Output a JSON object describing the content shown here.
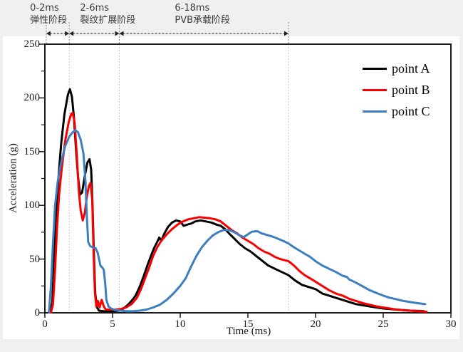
{
  "page": {
    "background_color": "#f0f0f1",
    "figure_background_color": "#ffffff"
  },
  "chart_data": {
    "type": "line",
    "title": "",
    "xlabel": "Time (ms)",
    "ylabel": "Acceleration (g)",
    "xlim": [
      0,
      30
    ],
    "ylim": [
      0,
      250
    ],
    "x_ticks": [
      0,
      5,
      10,
      15,
      20,
      25,
      30
    ],
    "y_ticks": [
      0,
      50,
      100,
      150,
      200,
      250
    ],
    "y_minor_ticks": [
      25,
      75,
      125,
      175,
      225
    ],
    "grid": false,
    "frame_color": "#1a1a1a",
    "legend_position": "upper right",
    "legend": {
      "items": [
        {
          "label": "point A",
          "color": "#000000"
        },
        {
          "label": "point B",
          "color": "#f80000"
        },
        {
          "label": "point C",
          "color": "#3c7ebf"
        }
      ]
    },
    "stages": [
      {
        "range_label": "0-2ms",
        "stage_label": "弹性阶段",
        "start_ms": 0.1,
        "end_ms": 1.8,
        "label_anchor_ms": -1.1
      },
      {
        "range_label": "2-6ms",
        "stage_label": "裂纹扩展阶段",
        "start_ms": 1.8,
        "end_ms": 5.5,
        "label_anchor_ms": 2.6
      },
      {
        "range_label": "6-18ms",
        "stage_label": "PVB承载阶段",
        "start_ms": 5.5,
        "end_ms": 18.0,
        "label_anchor_ms": 9.6
      }
    ],
    "series": [
      {
        "name": "point A",
        "color": "#000000",
        "line_width": 3,
        "points": [
          [
            0.25,
            0
          ],
          [
            0.4,
            1
          ],
          [
            0.55,
            10
          ],
          [
            0.7,
            55
          ],
          [
            0.85,
            95
          ],
          [
            1.0,
            125
          ],
          [
            1.2,
            157
          ],
          [
            1.45,
            185
          ],
          [
            1.7,
            203
          ],
          [
            1.85,
            208
          ],
          [
            2.0,
            201
          ],
          [
            2.15,
            182
          ],
          [
            2.3,
            152
          ],
          [
            2.45,
            127
          ],
          [
            2.6,
            110
          ],
          [
            2.75,
            112
          ],
          [
            2.95,
            127
          ],
          [
            3.15,
            140
          ],
          [
            3.3,
            143
          ],
          [
            3.42,
            133
          ],
          [
            3.52,
            100
          ],
          [
            3.62,
            55
          ],
          [
            3.72,
            18
          ],
          [
            3.85,
            5
          ],
          [
            4.0,
            2
          ],
          [
            4.3,
            1.5
          ],
          [
            4.7,
            1.5
          ],
          [
            5.1,
            1.5
          ],
          [
            5.5,
            2
          ],
          [
            5.8,
            4
          ],
          [
            6.1,
            7
          ],
          [
            6.4,
            11
          ],
          [
            6.7,
            16
          ],
          [
            7.0,
            24
          ],
          [
            7.3,
            34
          ],
          [
            7.6,
            45
          ],
          [
            7.9,
            55
          ],
          [
            8.1,
            61
          ],
          [
            8.3,
            66
          ],
          [
            8.45,
            70
          ],
          [
            8.6,
            67
          ],
          [
            8.8,
            73
          ],
          [
            9.1,
            80
          ],
          [
            9.4,
            84
          ],
          [
            9.7,
            86
          ],
          [
            10.0,
            85
          ],
          [
            10.25,
            81
          ],
          [
            10.5,
            82
          ],
          [
            10.8,
            83
          ],
          [
            11.1,
            85
          ],
          [
            11.5,
            86
          ],
          [
            11.9,
            85
          ],
          [
            12.3,
            84
          ],
          [
            12.7,
            82
          ],
          [
            13.0,
            81
          ],
          [
            13.3,
            78
          ],
          [
            13.6,
            74
          ],
          [
            14.0,
            69
          ],
          [
            14.4,
            64
          ],
          [
            14.8,
            60
          ],
          [
            15.2,
            57
          ],
          [
            15.6,
            53
          ],
          [
            16.0,
            49
          ],
          [
            16.5,
            44
          ],
          [
            17.0,
            41
          ],
          [
            17.5,
            38
          ],
          [
            18.0,
            35
          ],
          [
            18.5,
            30
          ],
          [
            19.0,
            26
          ],
          [
            19.5,
            24
          ],
          [
            20.0,
            22
          ],
          [
            20.5,
            18
          ],
          [
            21.0,
            16
          ],
          [
            21.5,
            14
          ],
          [
            22.0,
            12
          ],
          [
            22.5,
            10
          ],
          [
            23.0,
            8
          ],
          [
            23.5,
            7
          ],
          [
            24.0,
            6
          ],
          [
            24.5,
            5
          ],
          [
            25.0,
            4
          ],
          [
            25.5,
            3.5
          ],
          [
            26.0,
            3
          ],
          [
            26.5,
            2.5
          ],
          [
            27.0,
            2
          ],
          [
            27.5,
            1.8
          ],
          [
            28.0,
            1.5
          ]
        ]
      },
      {
        "name": "point B",
        "color": "#f80000",
        "line_width": 3,
        "points": [
          [
            0.45,
            0
          ],
          [
            0.6,
            8
          ],
          [
            0.75,
            40
          ],
          [
            0.9,
            80
          ],
          [
            1.05,
            110
          ],
          [
            1.25,
            135
          ],
          [
            1.5,
            160
          ],
          [
            1.75,
            177
          ],
          [
            1.95,
            185
          ],
          [
            2.05,
            186
          ],
          [
            2.2,
            177
          ],
          [
            2.35,
            148
          ],
          [
            2.5,
            115
          ],
          [
            2.65,
            95
          ],
          [
            2.8,
            86
          ],
          [
            2.95,
            93
          ],
          [
            3.1,
            108
          ],
          [
            3.25,
            118
          ],
          [
            3.38,
            121
          ],
          [
            3.5,
            105
          ],
          [
            3.6,
            55
          ],
          [
            3.7,
            18
          ],
          [
            3.8,
            6
          ],
          [
            3.92,
            11
          ],
          [
            4.05,
            5
          ],
          [
            4.2,
            12
          ],
          [
            4.35,
            6
          ],
          [
            4.5,
            3
          ],
          [
            4.8,
            3
          ],
          [
            5.2,
            3
          ],
          [
            5.6,
            3.5
          ],
          [
            6.0,
            5
          ],
          [
            6.4,
            8
          ],
          [
            6.8,
            14
          ],
          [
            7.1,
            22
          ],
          [
            7.4,
            32
          ],
          [
            7.7,
            42
          ],
          [
            8.0,
            53
          ],
          [
            8.3,
            61
          ],
          [
            8.6,
            67
          ],
          [
            9.0,
            73
          ],
          [
            9.4,
            78
          ],
          [
            9.8,
            82
          ],
          [
            10.2,
            85
          ],
          [
            10.6,
            87
          ],
          [
            11.0,
            88
          ],
          [
            11.4,
            89
          ],
          [
            11.8,
            88.5
          ],
          [
            12.2,
            88
          ],
          [
            12.6,
            87
          ],
          [
            13.0,
            85
          ],
          [
            13.4,
            81
          ],
          [
            13.8,
            77
          ],
          [
            14.2,
            74
          ],
          [
            14.6,
            70
          ],
          [
            15.0,
            67
          ],
          [
            15.4,
            64
          ],
          [
            15.8,
            60
          ],
          [
            16.2,
            57
          ],
          [
            16.6,
            55
          ],
          [
            17.0,
            52
          ],
          [
            17.4,
            50
          ],
          [
            18.0,
            48
          ],
          [
            18.4,
            44
          ],
          [
            18.8,
            39
          ],
          [
            19.2,
            35
          ],
          [
            19.6,
            32
          ],
          [
            20.0,
            29
          ],
          [
            20.5,
            25
          ],
          [
            21.0,
            21
          ],
          [
            21.5,
            18
          ],
          [
            22.0,
            16
          ],
          [
            22.5,
            13
          ],
          [
            23.0,
            11
          ],
          [
            23.5,
            9
          ],
          [
            24.0,
            7.5
          ],
          [
            24.5,
            6
          ],
          [
            25.0,
            5
          ],
          [
            25.5,
            4
          ],
          [
            26.0,
            3
          ],
          [
            26.5,
            2.5
          ],
          [
            27.0,
            2
          ],
          [
            27.6,
            1.5
          ],
          [
            28.2,
            1
          ]
        ]
      },
      {
        "name": "point C",
        "color": "#3c7ebf",
        "line_width": 3,
        "points": [
          [
            0.3,
            0
          ],
          [
            0.45,
            25
          ],
          [
            0.6,
            65
          ],
          [
            0.75,
            100
          ],
          [
            0.95,
            122
          ],
          [
            1.2,
            140
          ],
          [
            1.5,
            155
          ],
          [
            1.8,
            164
          ],
          [
            2.05,
            168
          ],
          [
            2.25,
            170
          ],
          [
            2.45,
            168
          ],
          [
            2.65,
            161
          ],
          [
            2.85,
            148
          ],
          [
            3.0,
            122
          ],
          [
            3.1,
            90
          ],
          [
            3.2,
            66
          ],
          [
            3.35,
            62
          ],
          [
            3.55,
            61
          ],
          [
            3.75,
            60
          ],
          [
            3.9,
            56
          ],
          [
            4.0,
            50
          ],
          [
            4.1,
            44
          ],
          [
            4.25,
            42
          ],
          [
            4.35,
            40
          ],
          [
            4.45,
            28
          ],
          [
            4.55,
            12
          ],
          [
            4.7,
            6
          ],
          [
            4.9,
            4
          ],
          [
            5.2,
            2.5
          ],
          [
            5.6,
            2
          ],
          [
            6.0,
            1.5
          ],
          [
            6.5,
            1.5
          ],
          [
            7.0,
            2
          ],
          [
            7.5,
            3
          ],
          [
            8.0,
            5
          ],
          [
            8.5,
            7.5
          ],
          [
            9.0,
            12
          ],
          [
            9.5,
            18
          ],
          [
            10.0,
            25
          ],
          [
            10.4,
            32
          ],
          [
            10.8,
            43
          ],
          [
            11.2,
            53
          ],
          [
            11.6,
            61
          ],
          [
            12.0,
            67
          ],
          [
            12.4,
            72
          ],
          [
            12.8,
            75
          ],
          [
            13.2,
            77
          ],
          [
            13.6,
            77
          ],
          [
            14.0,
            75
          ],
          [
            14.4,
            72
          ],
          [
            14.7,
            70.5
          ],
          [
            15.0,
            73
          ],
          [
            15.3,
            75.5
          ],
          [
            15.7,
            76
          ],
          [
            16.0,
            74
          ],
          [
            16.4,
            72.5
          ],
          [
            16.8,
            71
          ],
          [
            17.2,
            69
          ],
          [
            17.6,
            67
          ],
          [
            18.0,
            64.5
          ],
          [
            18.4,
            61
          ],
          [
            18.8,
            58
          ],
          [
            19.2,
            55
          ],
          [
            19.6,
            52
          ],
          [
            20.0,
            48
          ],
          [
            20.5,
            44
          ],
          [
            21.0,
            41
          ],
          [
            21.5,
            38
          ],
          [
            22.0,
            34.5
          ],
          [
            22.3,
            33.5
          ],
          [
            22.5,
            31
          ],
          [
            23.0,
            28
          ],
          [
            23.5,
            24.5
          ],
          [
            24.0,
            21
          ],
          [
            24.5,
            18.5
          ],
          [
            25.0,
            16
          ],
          [
            25.5,
            14
          ],
          [
            26.0,
            12.5
          ],
          [
            26.5,
            11
          ],
          [
            27.0,
            10
          ],
          [
            27.5,
            9
          ],
          [
            28.1,
            8
          ]
        ]
      }
    ]
  }
}
